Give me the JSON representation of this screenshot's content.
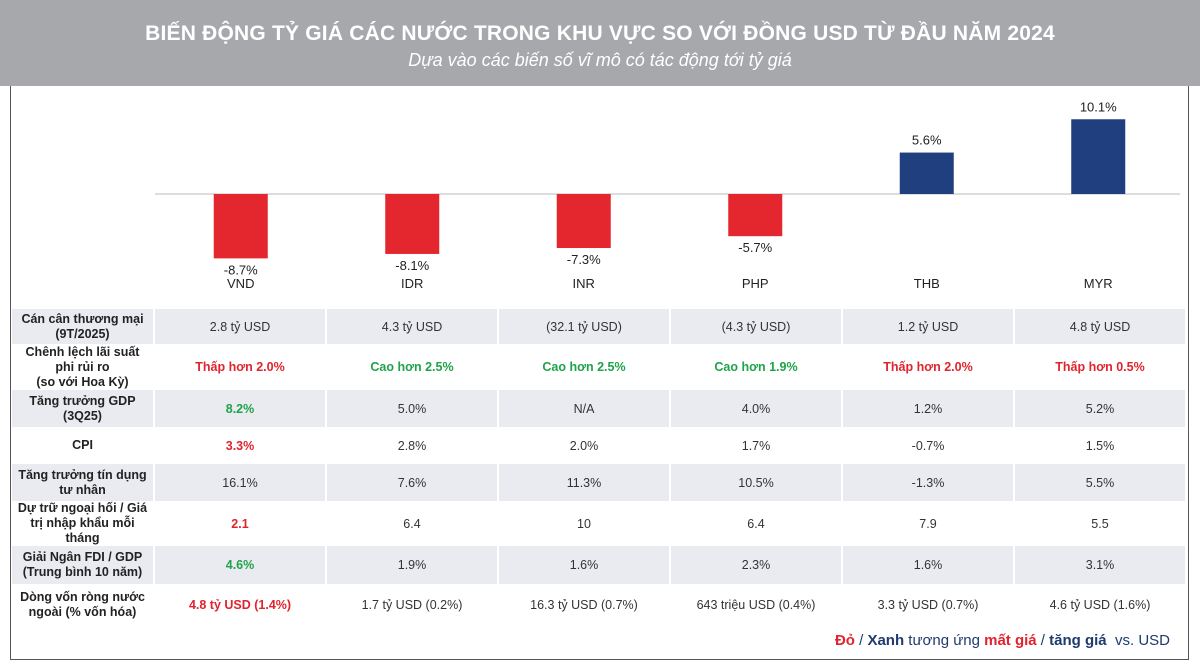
{
  "header": {
    "title": "BIẾN ĐỘNG TỶ GIÁ CÁC NƯỚC TRONG KHU VỰC SO VỚI ĐỒNG USD TỪ ĐẦU NĂM 2024",
    "subtitle": "Dựa vào các biến số vĩ mô có tác động tới tỷ giá"
  },
  "chart_data": {
    "type": "bar",
    "categories": [
      "VND",
      "IDR",
      "INR",
      "PHP",
      "THB",
      "MYR"
    ],
    "values": [
      -8.7,
      -8.1,
      -7.3,
      -5.7,
      5.6,
      10.1
    ],
    "data_labels": [
      "-8.7%",
      "-8.1%",
      "-7.3%",
      "-5.7%",
      "5.6%",
      "10.1%"
    ],
    "unit": "%",
    "colors": {
      "negative": "#e4262f",
      "positive": "#1f3f7f"
    },
    "grid": false
  },
  "table": {
    "rows": [
      {
        "label": "Cán cân thương mại\n(9T/2025)",
        "cells": [
          {
            "v": "2.8 tỷ USD"
          },
          {
            "v": "4.3 tỷ USD"
          },
          {
            "v": "(32.1 tỷ USD)"
          },
          {
            "v": "(4.3 tỷ USD)"
          },
          {
            "v": "1.2 tỷ USD"
          },
          {
            "v": "4.8 tỷ USD"
          }
        ]
      },
      {
        "label": "Chênh lệch lãi suất\nphi rủi ro\n(so với Hoa Kỳ)",
        "cells": [
          {
            "v": "Thấp hơn 2.0%",
            "c": "red"
          },
          {
            "v": "Cao hơn 2.5%",
            "c": "green"
          },
          {
            "v": "Cao hơn 2.5%",
            "c": "green"
          },
          {
            "v": "Cao hơn 1.9%",
            "c": "green"
          },
          {
            "v": "Thấp hơn 2.0%",
            "c": "red"
          },
          {
            "v": "Thấp hơn 0.5%",
            "c": "red"
          }
        ]
      },
      {
        "label": "Tăng trưởng GDP\n(3Q25)",
        "cells": [
          {
            "v": "8.2%",
            "c": "green"
          },
          {
            "v": "5.0%"
          },
          {
            "v": "N/A"
          },
          {
            "v": "4.0%"
          },
          {
            "v": "1.2%"
          },
          {
            "v": "5.2%"
          }
        ]
      },
      {
        "label": "CPI",
        "cells": [
          {
            "v": "3.3%",
            "c": "red"
          },
          {
            "v": "2.8%"
          },
          {
            "v": "2.0%"
          },
          {
            "v": "1.7%"
          },
          {
            "v": "-0.7%"
          },
          {
            "v": "1.5%"
          }
        ]
      },
      {
        "label": "Tăng trưởng tín dụng\ntư nhân",
        "cells": [
          {
            "v": "16.1%"
          },
          {
            "v": "7.6%"
          },
          {
            "v": "11.3%"
          },
          {
            "v": "10.5%"
          },
          {
            "v": "-1.3%"
          },
          {
            "v": "5.5%"
          }
        ]
      },
      {
        "label": "Dự trữ ngoại hối / Giá\ntrị nhập khẩu mỗi\ntháng",
        "cells": [
          {
            "v": "2.1",
            "c": "red"
          },
          {
            "v": "6.4"
          },
          {
            "v": "10"
          },
          {
            "v": "6.4"
          },
          {
            "v": "7.9"
          },
          {
            "v": "5.5"
          }
        ]
      },
      {
        "label": "Giải Ngân FDI / GDP\n(Trung bình 10 năm)",
        "cells": [
          {
            "v": "4.6%",
            "c": "green"
          },
          {
            "v": "1.9%"
          },
          {
            "v": "1.6%"
          },
          {
            "v": "2.3%"
          },
          {
            "v": "1.6%"
          },
          {
            "v": "3.1%"
          }
        ]
      },
      {
        "label": "Dòng vốn ròng nước\nngoài (% vốn hóa)",
        "cells": [
          {
            "v": "4.8 tỷ USD (1.4%)",
            "c": "red"
          },
          {
            "v": "1.7 tỷ USD (0.2%)"
          },
          {
            "v": "16.3 tỷ USD (0.7%)"
          },
          {
            "v": "643 triệu USD (0.4%)"
          },
          {
            "v": "3.3 tỷ USD (0.7%)"
          },
          {
            "v": "4.6 tỷ USD (1.6%)"
          }
        ]
      }
    ]
  },
  "legend": {
    "red": "Đỏ",
    "sep1": " / ",
    "blue": "Xanh",
    "mid": " tương ứng ",
    "loss": "mất giá",
    "sep2": " / ",
    "gain": "tăng giá",
    "tail": "  vs. USD"
  }
}
